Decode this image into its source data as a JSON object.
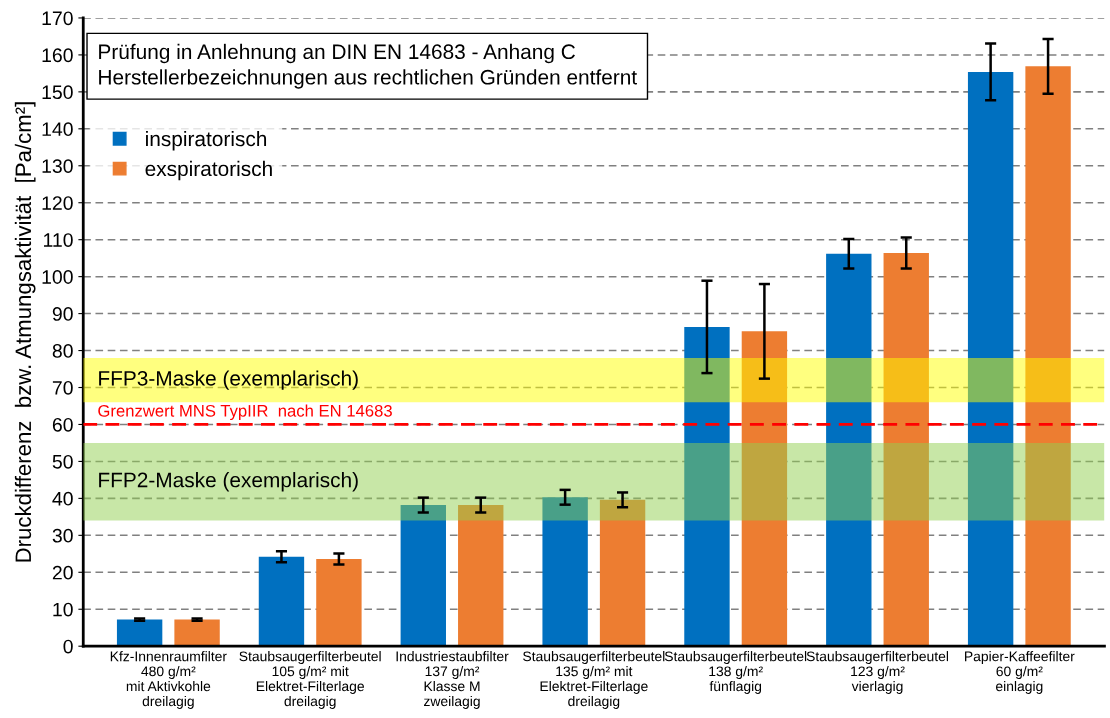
{
  "chart_data": {
    "type": "bar",
    "ylabel": "Druckdifferenz  bzw. Atmungsaktivität  [Pa/cm²]",
    "categories": [
      "Kfz-Innenraumfilter\n480 g/m²\nmit Aktivkohle\ndreilagig",
      "Staubsaugerfilterbeutel\n105 g/m² mit\nElektret-Filterlage\ndreilagig",
      "Industriestaubfilter\n137 g/m²\nKlasse M\nzweilagig",
      "Staubsaugerfilterbeutel\n135 g/m² mit\nElektret-Filterlage\ndreilagig",
      "Staubsaugerfilterbeutel\n138 g/m²\nfünflagig",
      "Staubsaugerfilterbeutel\n123 g/m²\nvierlagig",
      "Papier-Kaffeefilter\n60 g/m²\neinlagig"
    ],
    "series": [
      {
        "name": "inspiratorisch",
        "color": "#0070c0",
        "values": [
          7.2,
          24.2,
          38.2,
          40.3,
          86.4,
          106.2,
          155.4
        ],
        "errors": [
          0.3,
          1.5,
          2,
          2,
          12.5,
          4,
          7.7
        ]
      },
      {
        "name": "exspiratorisch",
        "color": "#ed7d31",
        "values": [
          7.2,
          23.6,
          38.2,
          39.6,
          85.2,
          106.4,
          156.9
        ],
        "errors": [
          0.3,
          1.5,
          2,
          2,
          12.8,
          4.2,
          7.4
        ]
      }
    ],
    "ylim": [
      0,
      170
    ],
    "yticks": [
      0,
      10,
      20,
      30,
      40,
      50,
      60,
      70,
      80,
      90,
      100,
      110,
      120,
      130,
      140,
      150,
      160,
      170
    ],
    "grid": "y",
    "legend": "top left",
    "bands": [
      {
        "axis": "y",
        "from": 66,
        "to": 78,
        "label": "FFP3-Maske (exemplarisch)",
        "color": "#ffff00"
      },
      {
        "axis": "y",
        "from": 34,
        "to": 55,
        "label": "FFP2-Maske (exemplarisch)",
        "color": "#92d050"
      }
    ],
    "ref_lines": [
      {
        "axis": "y",
        "value": 60,
        "label": "Grenzwert MNS TypIIR  nach EN 14683",
        "color": "#ff0000",
        "line_style": "dashed"
      }
    ],
    "annotations": [
      "Prüfung in Anlehnung an DIN EN 14683 - Anhang C\nHerstellerbezeichnungen aus rechtlichen Gründen entfernt"
    ]
  }
}
